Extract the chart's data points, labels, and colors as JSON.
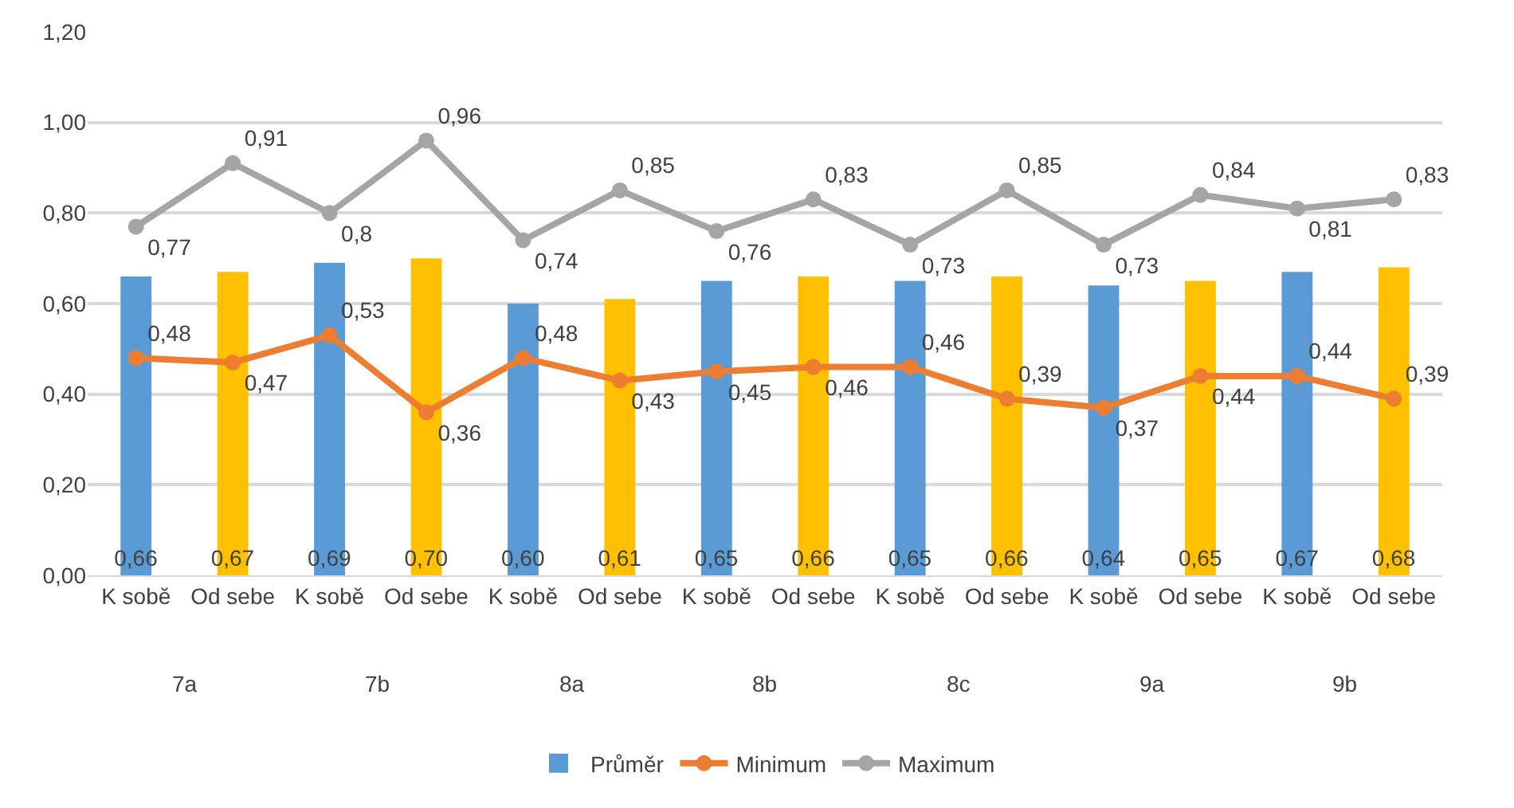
{
  "chart_data": {
    "type": "bar",
    "categories": [
      "K sobě",
      "Od sebe",
      "K sobě",
      "Od sebe",
      "K sobě",
      "Od sebe",
      "K sobě",
      "Od sebe",
      "K sobě",
      "Od sebe",
      "K sobě",
      "Od sebe",
      "K sobě",
      "Od sebe"
    ],
    "annotations": [
      "7a",
      "7b",
      "8a",
      "8b",
      "8c",
      "9a",
      "9b"
    ],
    "series": [
      {
        "name": "Průměr",
        "colors": [
          "#5b9bd5",
          "#ffc000",
          "#5b9bd5",
          "#ffc000",
          "#5b9bd5",
          "#ffc000",
          "#5b9bd5",
          "#ffc000",
          "#5b9bd5",
          "#ffc000",
          "#5b9bd5",
          "#ffc000",
          "#5b9bd5",
          "#ffc000"
        ],
        "values": [
          0.66,
          0.67,
          0.69,
          0.7,
          0.6,
          0.61,
          0.65,
          0.66,
          0.65,
          0.66,
          0.64,
          0.65,
          0.67,
          0.68
        ],
        "value_labels": [
          "0,66",
          "0,67",
          "0,69",
          "0,70",
          "0,60",
          "0,61",
          "0,65",
          "0,66",
          "0,65",
          "0,66",
          "0,64",
          "0,65",
          "0,67",
          "0,68"
        ]
      },
      {
        "name": "Minimum",
        "type": "line",
        "color": "#ed7d31",
        "values": [
          0.48,
          0.47,
          0.53,
          0.36,
          0.48,
          0.43,
          0.45,
          0.46,
          0.46,
          0.39,
          0.37,
          0.44,
          0.44,
          0.39
        ],
        "value_labels": [
          "0,48",
          "0,47",
          "0,53",
          "0,36",
          "0,48",
          "0,43",
          "0,45",
          "0,46",
          "0,46",
          "0,39",
          "0,37",
          "0,44",
          "0,44",
          "0,39"
        ]
      },
      {
        "name": "Maximum",
        "type": "line",
        "color": "#a5a5a5",
        "values": [
          0.77,
          0.91,
          0.8,
          0.96,
          0.74,
          0.85,
          0.76,
          0.83,
          0.73,
          0.85,
          0.73,
          0.84,
          0.81,
          0.83
        ],
        "value_labels": [
          "0,77",
          "0,91",
          "0,8",
          "0,96",
          "0,74",
          "0,85",
          "0,76",
          "0,83",
          "0,73",
          "0,85",
          "0,73",
          "0,84",
          "0,81",
          "0,83"
        ]
      }
    ],
    "ylim": [
      0,
      1.2
    ],
    "yticks": [
      {
        "value": 0,
        "label": "0,00"
      },
      {
        "value": 0.2,
        "label": "0,20"
      },
      {
        "value": 0.4,
        "label": "0,40"
      },
      {
        "value": 0.6,
        "label": "0,60"
      },
      {
        "value": 0.8,
        "label": "0,80"
      },
      {
        "value": 1,
        "label": "1,00"
      },
      {
        "value": 1.2,
        "label": "1,20"
      }
    ],
    "grid": "y",
    "legend": "bottom",
    "marker": "circle",
    "line_style": "solid"
  }
}
